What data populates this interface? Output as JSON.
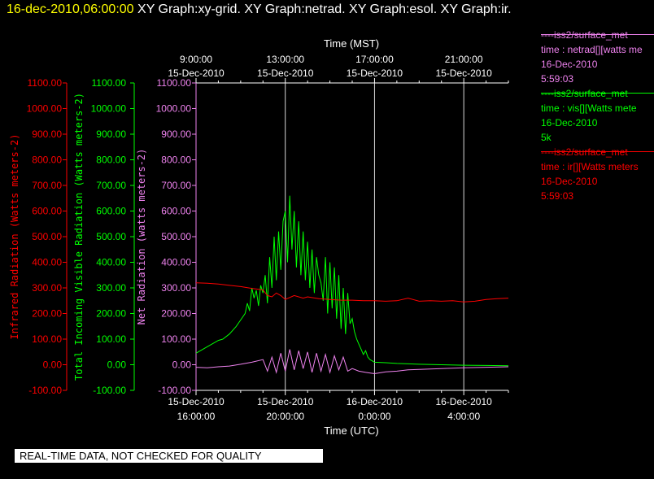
{
  "header": {
    "timestamp": "16-dec-2010,06:00:00",
    "graph_titles": "XY Graph:xy-grid.  XY Graph:netrad.  XY Graph:esol.  XY Graph:ir.",
    "timestamp_color": "#ffff00"
  },
  "legend": [
    {
      "color": "#ee82ee",
      "lines": [
        "----iss2/surface_met",
        "time : netrad[][watts me",
        "16-Dec-2010",
        "5:59:03"
      ]
    },
    {
      "color": "#00ff00",
      "lines": [
        "----iss2/surface_met",
        "time : vis[][Watts mete",
        "16-Dec-2010",
        "5k"
      ]
    },
    {
      "color": "#ff0000",
      "lines": [
        "----iss2/surface_met",
        "time : ir[][Watts meters",
        "16-Dec-2010",
        "5:59:03"
      ]
    }
  ],
  "footer": {
    "quality_note": "REAL-TIME DATA, NOT CHECKED FOR QUALITY"
  },
  "chart_data": {
    "type": "line",
    "grid": "vertical",
    "top_axis": {
      "title": "Time (MST)",
      "ticks": [
        {
          "hour": 0,
          "line1": "9:00:00",
          "line2": "15-Dec-2010"
        },
        {
          "hour": 4,
          "line1": "13:00:00",
          "line2": "15-Dec-2010"
        },
        {
          "hour": 8,
          "line1": "17:00:00",
          "line2": "15-Dec-2010"
        },
        {
          "hour": 12,
          "line1": "21:00:00",
          "line2": "15-Dec-2010"
        }
      ]
    },
    "bottom_axis": {
      "title": "Time (UTC)",
      "ticks": [
        {
          "hour": 0,
          "line1": "15-Dec-2010",
          "line2": "16:00:00"
        },
        {
          "hour": 4,
          "line1": "15-Dec-2010",
          "line2": "20:00:00"
        },
        {
          "hour": 8,
          "line1": "16-Dec-2010",
          "line2": "0:00:00"
        },
        {
          "hour": 12,
          "line1": "16-Dec-2010",
          "line2": "4:00:00"
        }
      ]
    },
    "x_range_hours": [
      0,
      14
    ],
    "y_range": [
      -100,
      1100
    ],
    "y_ticks": [
      "-100.00",
      "0.00",
      "100.00",
      "200.00",
      "300.00",
      "400.00",
      "500.00",
      "600.00",
      "700.00",
      "800.00",
      "900.00",
      "1000.00",
      "1100.00"
    ],
    "y_axes": [
      {
        "label": "Infrared Radiation (Watts meters-2)",
        "color": "#ff0000"
      },
      {
        "label": "Total Incoming Visible Radiation (Watts meters-2)",
        "color": "#00ff00"
      },
      {
        "label": "Net Radiation (watts meters-2)",
        "color": "#ee82ee"
      }
    ],
    "series": [
      {
        "name": "ir",
        "color": "#ff0000",
        "x": [
          0,
          0.5,
          1,
          1.5,
          2,
          2.5,
          3,
          3.2,
          3.4,
          3.6,
          3.8,
          4,
          4.4,
          4.8,
          5,
          5.5,
          6,
          6.5,
          7,
          7.5,
          8,
          8.5,
          9,
          9.5,
          10,
          10.5,
          11,
          11.5,
          12,
          12.5,
          13,
          13.5,
          14
        ],
        "y": [
          320,
          318,
          315,
          310,
          305,
          298,
          292,
          270,
          265,
          280,
          270,
          255,
          270,
          260,
          265,
          258,
          255,
          252,
          252,
          250,
          250,
          248,
          250,
          260,
          248,
          250,
          248,
          250,
          245,
          248,
          255,
          258,
          260
        ]
      },
      {
        "name": "vis",
        "color": "#00ff00",
        "x": [
          0,
          0.5,
          1,
          1.2,
          1.5,
          1.8,
          2,
          2.2,
          2.3,
          2.4,
          2.5,
          2.6,
          2.7,
          2.8,
          2.9,
          3,
          3.1,
          3.2,
          3.3,
          3.4,
          3.5,
          3.6,
          3.7,
          3.8,
          3.9,
          4,
          4.1,
          4.2,
          4.3,
          4.4,
          4.5,
          4.6,
          4.7,
          4.8,
          4.9,
          5,
          5.1,
          5.2,
          5.3,
          5.4,
          5.5,
          5.6,
          5.7,
          5.8,
          5.9,
          6,
          6.1,
          6.2,
          6.3,
          6.4,
          6.5,
          6.6,
          6.7,
          6.8,
          6.9,
          7,
          7.1,
          7.2,
          7.3,
          7.4,
          7.5,
          7.6,
          7.7,
          7.8,
          7.9,
          8,
          8.5,
          9,
          10,
          11,
          12,
          13,
          14
        ],
        "y": [
          45,
          70,
          95,
          100,
          120,
          150,
          175,
          200,
          240,
          210,
          300,
          260,
          290,
          230,
          310,
          280,
          350,
          240,
          420,
          300,
          500,
          330,
          520,
          370,
          560,
          600,
          400,
          660,
          450,
          600,
          380,
          560,
          350,
          520,
          330,
          480,
          300,
          450,
          280,
          420,
          350,
          320,
          250,
          420,
          200,
          400,
          220,
          380,
          180,
          350,
          140,
          300,
          120,
          280,
          160,
          180,
          130,
          100,
          80,
          60,
          40,
          55,
          30,
          20,
          15,
          10,
          8,
          5,
          2,
          0,
          -2,
          -3,
          -4
        ]
      },
      {
        "name": "netrad",
        "color": "#ee82ee",
        "x": [
          0,
          0.5,
          1,
          1.5,
          2,
          2.5,
          3,
          3.2,
          3.4,
          3.6,
          3.8,
          4,
          4.2,
          4.4,
          4.6,
          4.8,
          5,
          5.2,
          5.4,
          5.6,
          5.8,
          6,
          6.2,
          6.4,
          6.6,
          6.8,
          7,
          7.3,
          7.6,
          8,
          8.5,
          9,
          9.5,
          10,
          11,
          12,
          13,
          14
        ],
        "y": [
          -10,
          -12,
          -8,
          -5,
          2,
          10,
          20,
          -25,
          30,
          -30,
          45,
          -25,
          60,
          -20,
          55,
          -15,
          50,
          -30,
          45,
          -25,
          40,
          -30,
          35,
          -20,
          30,
          -25,
          -15,
          -25,
          -30,
          -35,
          -28,
          -25,
          -20,
          -18,
          -15,
          -12,
          -10,
          -8
        ]
      }
    ]
  }
}
